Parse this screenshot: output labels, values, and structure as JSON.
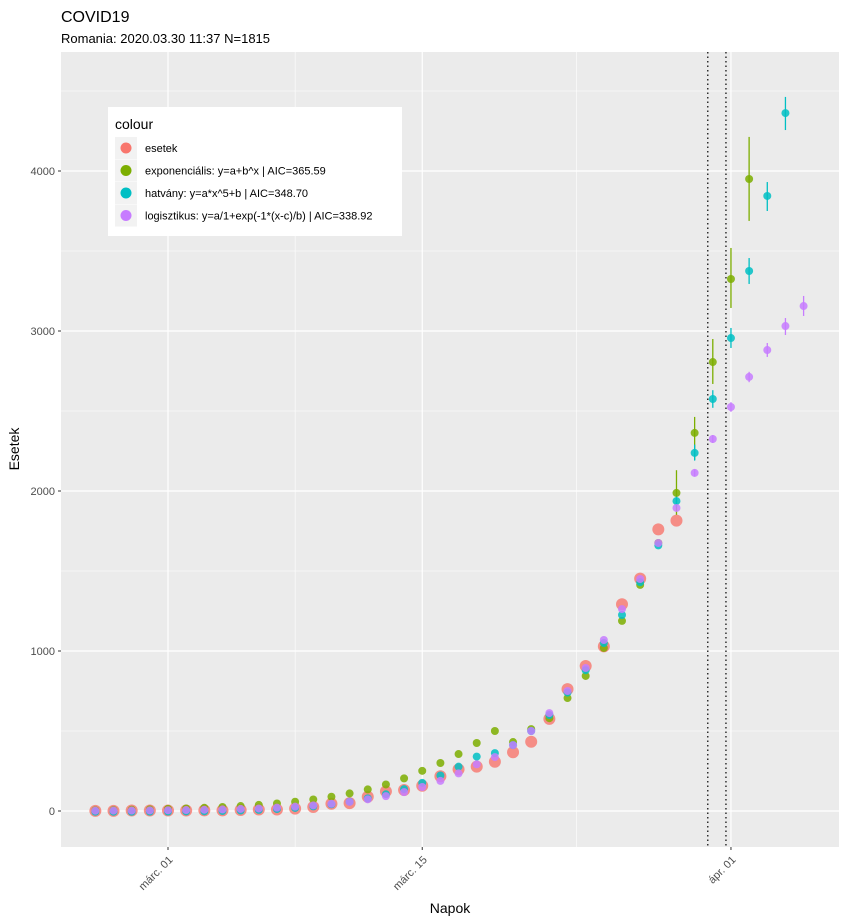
{
  "chart_data": {
    "type": "scatter",
    "title": "COVID19",
    "subtitle": "Romania: 2020.03.30 11:37 N=1815",
    "xlabel": "Napok",
    "ylabel": "Esetek",
    "x_unit": "days relative to 2020-03-01",
    "xlim": [
      -8.1,
      34.8
    ],
    "ylim": [
      -220,
      4720
    ],
    "x_ticks": [
      {
        "value": 0,
        "label": "márc. 01"
      },
      {
        "value": 14,
        "label": "márc. 15"
      },
      {
        "value": 31,
        "label": "ápr. 01"
      }
    ],
    "x_minor_ticks": [
      7,
      22.5
    ],
    "y_ticks": [
      {
        "value": 0,
        "label": "0"
      },
      {
        "value": 1000,
        "label": "1000"
      },
      {
        "value": 2000,
        "label": "2000"
      },
      {
        "value": 3000,
        "label": "3000"
      },
      {
        "value": 4000,
        "label": "4000"
      }
    ],
    "y_minor_ticks": [
      500,
      1500,
      2500,
      3500,
      4500
    ],
    "vlines": [
      30,
      31
    ],
    "grid": true,
    "legend": {
      "title": "colour",
      "placement": "top-left",
      "items": [
        {
          "label": "esetek",
          "color": "#F8766D"
        },
        {
          "label": "exponenciális: y=a+b^x | AIC=365.59",
          "color": "#7CAE00"
        },
        {
          "label": "hatvány: y=a*x^5+b | AIC=348.70",
          "color": "#00BFC4"
        },
        {
          "label": "logisztikus: y=a/1+exp(-1*(x-c)/b) | AIC=338.92",
          "color": "#C77CFF"
        }
      ]
    },
    "series": [
      {
        "name": "esetek",
        "color": "#F8766D",
        "x": [
          -4,
          -3,
          -2,
          -1,
          0,
          1,
          2,
          3,
          4,
          5,
          6,
          7,
          8,
          9,
          10,
          11,
          12,
          13,
          14,
          15,
          16,
          17,
          18,
          19,
          20,
          21,
          22,
          23,
          24,
          25,
          26,
          27,
          28
        ],
        "values": [
          1,
          1,
          3,
          3,
          3,
          3,
          4,
          4,
          6,
          9,
          9,
          15,
          25,
          45,
          49,
          89,
          123,
          131,
          158,
          217,
          260,
          277,
          308,
          367,
          433,
          576,
          762,
          906,
          1029,
          1292,
          1452,
          1760,
          1815
        ]
      },
      {
        "name": "exponenciális",
        "color": "#7CAE00",
        "x": [
          -4,
          -3,
          -2,
          -1,
          0,
          1,
          2,
          3,
          4,
          5,
          6,
          7,
          8,
          9,
          10,
          11,
          12,
          13,
          14,
          15,
          16,
          17,
          18,
          19,
          20,
          21,
          22,
          23,
          24,
          25,
          26,
          27,
          28,
          29,
          30,
          31,
          32
        ],
        "values": [
          5,
          6,
          8,
          10,
          13,
          16,
          20,
          25,
          31,
          38,
          47,
          58,
          72,
          89,
          110,
          135,
          166,
          204,
          251,
          300,
          356,
          425,
          500,
          431,
          512,
          580,
          706,
          844,
          1019,
          1188,
          1413,
          1675,
          1988,
          2363,
          2806,
          3325,
          3950
        ],
        "err_low": [
          null,
          null,
          null,
          null,
          null,
          null,
          null,
          null,
          null,
          null,
          null,
          null,
          null,
          null,
          null,
          null,
          null,
          null,
          null,
          null,
          null,
          null,
          null,
          null,
          null,
          null,
          null,
          null,
          null,
          null,
          null,
          null,
          1850,
          2194,
          2669,
          3144,
          3688
        ],
        "err_high": [
          null,
          null,
          null,
          null,
          null,
          null,
          null,
          null,
          null,
          null,
          null,
          null,
          null,
          null,
          null,
          null,
          null,
          null,
          null,
          null,
          null,
          null,
          null,
          null,
          null,
          null,
          null,
          null,
          null,
          null,
          null,
          null,
          2130,
          2463,
          2950,
          3519,
          4213
        ]
      },
      {
        "name": "hatvány",
        "color": "#00BFC4",
        "x": [
          -4,
          -3,
          -2,
          -1,
          0,
          1,
          2,
          3,
          4,
          5,
          6,
          7,
          8,
          9,
          10,
          11,
          12,
          13,
          14,
          15,
          16,
          17,
          18,
          19,
          20,
          21,
          22,
          23,
          24,
          25,
          26,
          27,
          28,
          29,
          30,
          31,
          32,
          33,
          34
        ],
        "values": [
          -5,
          -5,
          -5,
          -4,
          -4,
          -3,
          -2,
          0,
          3,
          7,
          12,
          19,
          29,
          42,
          58,
          79,
          105,
          137,
          176,
          222,
          277,
          340,
          362,
          412,
          500,
          600,
          740,
          880,
          1050,
          1225,
          1430,
          1660,
          1937,
          2238,
          2575,
          2956,
          3375,
          3844,
          4362
        ],
        "err_low": [
          null,
          null,
          null,
          null,
          null,
          null,
          null,
          null,
          null,
          null,
          null,
          null,
          null,
          null,
          null,
          null,
          null,
          null,
          null,
          null,
          null,
          null,
          null,
          null,
          null,
          null,
          null,
          null,
          null,
          null,
          null,
          null,
          1900,
          2190,
          2520,
          2894,
          3294,
          3750,
          4256
        ],
        "err_high": [
          null,
          null,
          null,
          null,
          null,
          null,
          null,
          null,
          null,
          null,
          null,
          null,
          null,
          null,
          null,
          null,
          null,
          null,
          null,
          null,
          null,
          null,
          null,
          null,
          null,
          null,
          null,
          null,
          null,
          null,
          null,
          null,
          1975,
          2290,
          2630,
          3019,
          3456,
          3931,
          4463
        ]
      },
      {
        "name": "logisztikus",
        "color": "#C77CFF",
        "x": [
          -4,
          -3,
          -2,
          -1,
          0,
          1,
          2,
          3,
          4,
          5,
          6,
          7,
          8,
          9,
          10,
          11,
          12,
          13,
          14,
          15,
          16,
          17,
          18,
          19,
          20,
          21,
          22,
          23,
          24,
          25,
          26,
          27,
          28,
          29,
          30,
          31,
          32,
          33,
          34,
          35
        ],
        "values": [
          2,
          3,
          3,
          4,
          5,
          6,
          8,
          10,
          13,
          16,
          21,
          27,
          35,
          45,
          57,
          73,
          93,
          118,
          150,
          188,
          235,
          292,
          337,
          412,
          500,
          612,
          750,
          894,
          1069,
          1262,
          1450,
          1675,
          1894,
          2113,
          2325,
          2525,
          2713,
          2881,
          3031,
          3156
        ],
        "err_low": [
          null,
          null,
          null,
          null,
          null,
          null,
          null,
          null,
          null,
          null,
          null,
          null,
          null,
          null,
          null,
          null,
          null,
          null,
          null,
          null,
          null,
          null,
          null,
          null,
          null,
          null,
          null,
          null,
          null,
          null,
          null,
          null,
          null,
          2090,
          2300,
          2495,
          2680,
          2838,
          2975,
          3094
        ],
        "err_high": [
          null,
          null,
          null,
          null,
          null,
          null,
          null,
          null,
          null,
          null,
          null,
          null,
          null,
          null,
          null,
          null,
          null,
          null,
          null,
          null,
          null,
          null,
          null,
          null,
          null,
          null,
          null,
          null,
          null,
          null,
          null,
          null,
          null,
          2135,
          2350,
          2555,
          2745,
          2925,
          3081,
          3219
        ]
      }
    ]
  }
}
